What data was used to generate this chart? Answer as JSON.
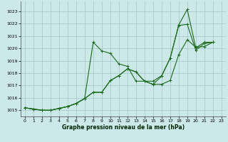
{
  "title": "Graphe pression niveau de la mer (hPa)",
  "bg_color": "#cce8e8",
  "grid_color": "#aacccc",
  "line_color": "#1a6b1a",
  "xlim": [
    -0.5,
    23.5
  ],
  "ylim": [
    1014.5,
    1023.8
  ],
  "yticks": [
    1015,
    1016,
    1017,
    1018,
    1019,
    1020,
    1021,
    1022,
    1023
  ],
  "xticks": [
    0,
    1,
    2,
    3,
    4,
    5,
    6,
    7,
    8,
    9,
    10,
    11,
    12,
    13,
    14,
    15,
    16,
    17,
    18,
    19,
    20,
    21,
    22,
    23
  ],
  "s1_x": [
    0,
    1,
    2,
    3,
    4,
    5,
    6,
    7,
    8,
    9,
    10,
    11,
    12,
    13,
    14,
    15,
    16,
    17,
    18,
    19,
    20,
    21,
    22
  ],
  "s1_y": [
    1015.2,
    1015.1,
    1015.0,
    1015.0,
    1015.15,
    1015.3,
    1015.55,
    1015.95,
    1020.5,
    1019.8,
    1019.6,
    1018.75,
    1018.55,
    1017.35,
    1017.35,
    1017.35,
    1017.8,
    1019.2,
    1021.9,
    1023.15,
    1020.05,
    1020.5,
    1020.5
  ],
  "s2_x": [
    0,
    1,
    2,
    3,
    4,
    5,
    6,
    7,
    8,
    9,
    10,
    11,
    12,
    13,
    14,
    15,
    16,
    17,
    18,
    19,
    20,
    21,
    22
  ],
  "s2_y": [
    1015.2,
    1015.1,
    1015.0,
    1015.0,
    1015.15,
    1015.3,
    1015.55,
    1015.95,
    1016.45,
    1016.45,
    1017.4,
    1017.8,
    1018.35,
    1018.1,
    1017.35,
    1017.1,
    1017.75,
    1019.2,
    1021.85,
    1021.95,
    1019.85,
    1020.4,
    1020.5
  ],
  "s3_x": [
    0,
    1,
    2,
    3,
    4,
    5,
    6,
    7,
    8,
    9,
    10,
    11,
    12,
    13,
    14,
    15,
    16,
    17,
    18,
    19,
    20,
    21,
    22
  ],
  "s3_y": [
    1015.2,
    1015.1,
    1015.0,
    1015.0,
    1015.15,
    1015.3,
    1015.55,
    1015.95,
    1016.45,
    1016.45,
    1017.4,
    1017.8,
    1018.35,
    1018.1,
    1017.35,
    1017.1,
    1017.1,
    1017.4,
    1019.5,
    1020.7,
    1020.1,
    1020.15,
    1020.5
  ]
}
